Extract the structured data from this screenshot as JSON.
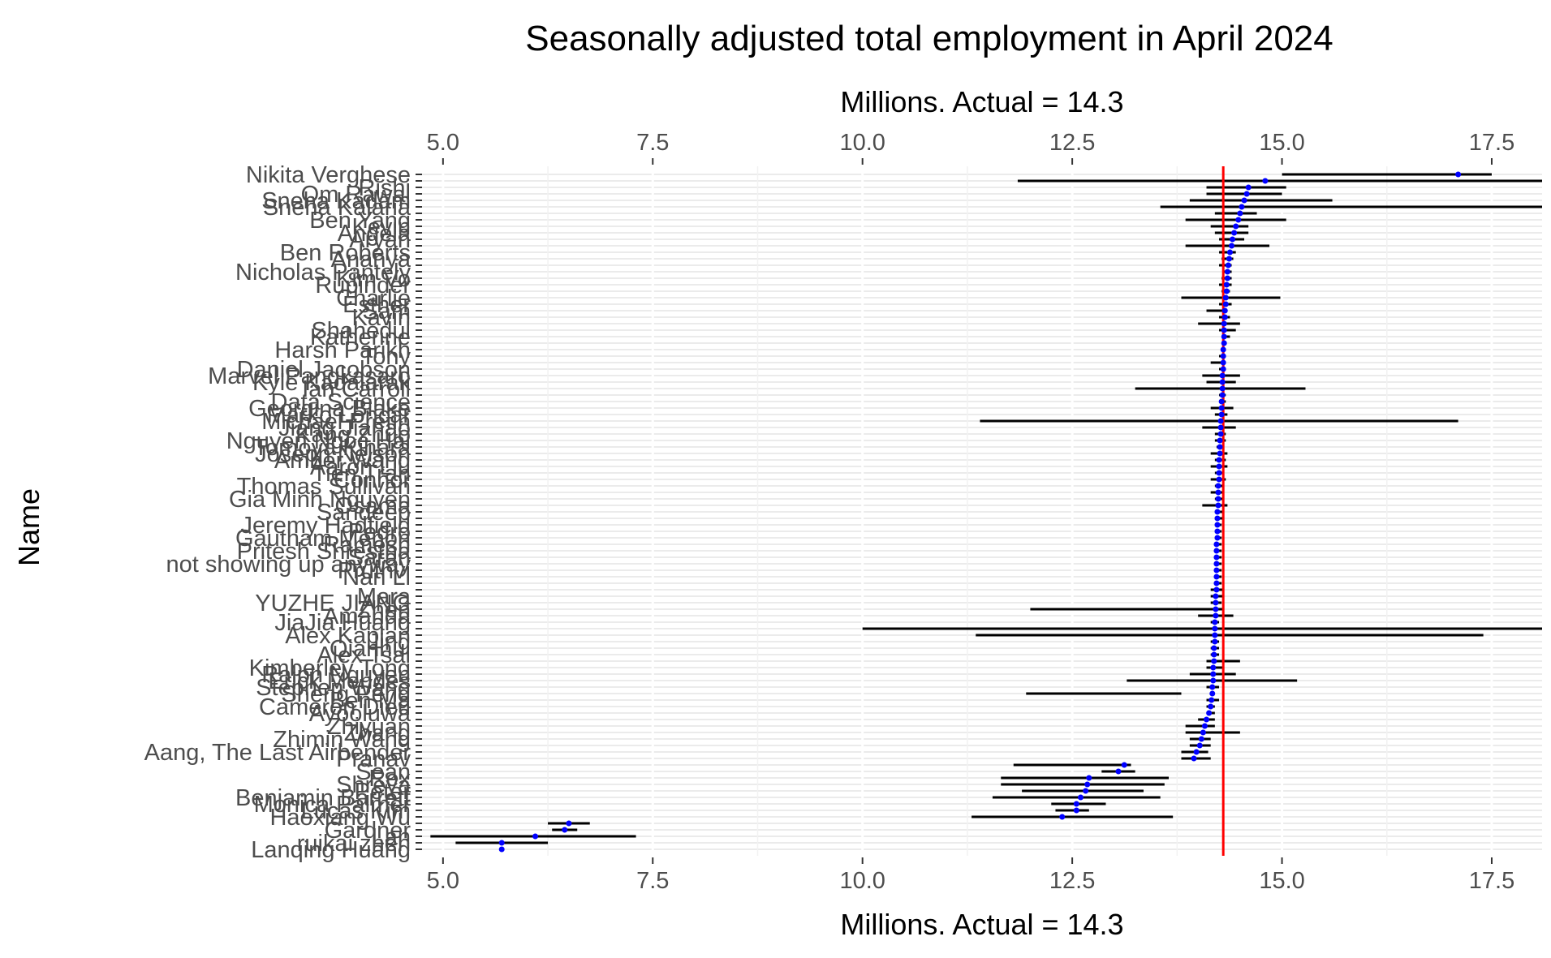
{
  "chart_data": {
    "type": "scatter",
    "title": "Seasonally adjusted total employment in April 2024",
    "xlabel_top": "Millions. Actual = 14.3",
    "xlabel": "Millions. Actual = 14.3",
    "ylabel": "Name",
    "xlim": [
      4.75,
      18.1
    ],
    "x_ticks": [
      "5.0",
      "7.5",
      "10.0",
      "12.5",
      "15.0",
      "17.5"
    ],
    "x_tick_values": [
      5.0,
      7.5,
      10.0,
      12.5,
      15.0,
      17.5
    ],
    "reference_line": {
      "x": 14.3,
      "color": "#ff0000"
    },
    "point_color": "#0000ff",
    "bar_color": "#000000",
    "grid": true,
    "rows": [
      {
        "name": "Nikita Verghese",
        "value": 17.1,
        "low": 15.0,
        "high": 17.5
      },
      {
        "name": "",
        "value": 14.8,
        "low": 11.85,
        "high": 18.1
      },
      {
        "name": "Rishi",
        "value": 14.6,
        "low": 14.1,
        "high": 15.05
      },
      {
        "name": "Om Rawal",
        "value": 14.58,
        "low": 14.1,
        "high": 15.0
      },
      {
        "name": "Sneha Kadam",
        "value": 14.55,
        "low": 13.9,
        "high": 15.6
      },
      {
        "name": "Sneha Kalaria",
        "value": 14.52,
        "low": 13.55,
        "high": 18.1
      },
      {
        "name": "",
        "value": 14.5,
        "low": 14.2,
        "high": 14.7
      },
      {
        "name": "Ben Yang",
        "value": 14.48,
        "low": 13.85,
        "high": 15.05
      },
      {
        "name": "Kevin",
        "value": 14.45,
        "low": 14.15,
        "high": 14.6
      },
      {
        "name": "Angela",
        "value": 14.43,
        "low": 14.2,
        "high": 14.6
      },
      {
        "name": "Aryan",
        "value": 14.41,
        "low": 14.25,
        "high": 14.55
      },
      {
        "name": "",
        "value": 14.4,
        "low": 13.85,
        "high": 14.85
      },
      {
        "name": "Ben Roberts",
        "value": 14.38,
        "low": 14.25,
        "high": 14.45
      },
      {
        "name": "Ananya",
        "value": 14.37,
        "low": 14.28,
        "high": 14.42
      },
      {
        "name": "",
        "value": 14.36,
        "low": 14.25,
        "high": 14.4
      },
      {
        "name": "Nicholas Pantely",
        "value": 14.35,
        "low": 14.3,
        "high": 14.4
      },
      {
        "name": "Kim Vo",
        "value": 14.35,
        "low": 14.28,
        "high": 14.4
      },
      {
        "name": "Rupinder",
        "value": 14.34,
        "low": 14.25,
        "high": 14.4
      },
      {
        "name": "",
        "value": 14.34,
        "low": 14.28,
        "high": 14.38
      },
      {
        "name": "Charlie",
        "value": 14.33,
        "low": 13.8,
        "high": 14.98
      },
      {
        "name": "Esther",
        "value": 14.33,
        "low": 14.25,
        "high": 14.4
      },
      {
        "name": "Sam",
        "value": 14.32,
        "low": 14.1,
        "high": 14.35
      },
      {
        "name": "Kavin",
        "value": 14.32,
        "low": 14.25,
        "high": 14.38
      },
      {
        "name": "",
        "value": 14.31,
        "low": 14.0,
        "high": 14.5
      },
      {
        "name": "Shahedul",
        "value": 14.31,
        "low": 14.25,
        "high": 14.45
      },
      {
        "name": "Katherine",
        "value": 14.31,
        "low": 14.28,
        "high": 14.38
      },
      {
        "name": "",
        "value": 14.31,
        "low": 14.28,
        "high": 14.33
      },
      {
        "name": "Harsh Parikh",
        "value": 14.3,
        "low": 14.28,
        "high": 14.33
      },
      {
        "name": "Tony",
        "value": 14.3,
        "low": 14.25,
        "high": 14.33
      },
      {
        "name": "",
        "value": 14.3,
        "low": 14.15,
        "high": 14.33
      },
      {
        "name": "Daniel Jacobson",
        "value": 14.3,
        "low": 14.25,
        "high": 14.33
      },
      {
        "name": "Marvel Pangkasaro",
        "value": 14.29,
        "low": 14.05,
        "high": 14.5
      },
      {
        "name": "Kyle Kadalarak",
        "value": 14.29,
        "low": 14.1,
        "high": 14.45
      },
      {
        "name": "Ian Carroll",
        "value": 14.29,
        "low": 13.25,
        "high": 15.28
      },
      {
        "name": "",
        "value": 14.29,
        "low": 14.25,
        "high": 14.33
      },
      {
        "name": "Data Science",
        "value": 14.28,
        "low": 14.25,
        "high": 14.33
      },
      {
        "name": "Georgina Blake",
        "value": 14.28,
        "low": 14.15,
        "high": 14.42
      },
      {
        "name": "Marko Loncar",
        "value": 14.28,
        "low": 14.2,
        "high": 14.35
      },
      {
        "name": "Michael Pretin",
        "value": 14.27,
        "low": 11.4,
        "high": 17.1
      },
      {
        "name": "Jiang Jiahao",
        "value": 14.27,
        "low": 14.05,
        "high": 14.45
      },
      {
        "name": "Kang Zhuo",
        "value": 14.27,
        "low": 14.2,
        "high": 14.33
      },
      {
        "name": "Nguyen Ngoc Hai",
        "value": 14.26,
        "low": 14.2,
        "high": 14.33
      },
      {
        "name": "Tomoya Kihara",
        "value": 14.26,
        "low": 14.22,
        "high": 14.3
      },
      {
        "name": "Joseph Nelson",
        "value": 14.26,
        "low": 14.15,
        "high": 14.35
      },
      {
        "name": "Amber Wang",
        "value": 14.25,
        "low": 14.2,
        "high": 14.33
      },
      {
        "name": "Aaron Liu",
        "value": 14.25,
        "low": 14.15,
        "high": 14.35
      },
      {
        "name": "Tien Tran",
        "value": 14.25,
        "low": 14.2,
        "high": 14.3
      },
      {
        "name": "Connor",
        "value": 14.25,
        "low": 14.15,
        "high": 14.33
      },
      {
        "name": "Thomas Sullivan",
        "value": 14.24,
        "low": 14.2,
        "high": 14.3
      },
      {
        "name": "",
        "value": 14.24,
        "low": 14.15,
        "high": 14.3
      },
      {
        "name": "Gia Minh Nguyen",
        "value": 14.24,
        "low": 14.2,
        "high": 14.3
      },
      {
        "name": "Osama",
        "value": 14.24,
        "low": 14.05,
        "high": 14.35
      },
      {
        "name": "Sandeep",
        "value": 14.23,
        "low": 14.2,
        "high": 14.3
      },
      {
        "name": "",
        "value": 14.23,
        "low": 14.2,
        "high": 14.3
      },
      {
        "name": "Jeremy Hadfield",
        "value": 14.23,
        "low": 14.2,
        "high": 14.28
      },
      {
        "name": "Pedro",
        "value": 14.23,
        "low": 14.2,
        "high": 14.28
      },
      {
        "name": "Gautham Menon",
        "value": 14.23,
        "low": 14.2,
        "high": 14.28
      },
      {
        "name": "Ramesh",
        "value": 14.22,
        "low": 14.2,
        "high": 14.28
      },
      {
        "name": "Pritesh Shrestha",
        "value": 14.22,
        "low": 14.2,
        "high": 14.28
      },
      {
        "name": "Sarah",
        "value": 14.22,
        "low": 14.2,
        "high": 14.28
      },
      {
        "name": "not showing up anyway",
        "value": 14.22,
        "low": 14.2,
        "high": 14.28
      },
      {
        "name": "Pruthvi",
        "value": 14.22,
        "low": 14.2,
        "high": 14.28
      },
      {
        "name": "Nan Li",
        "value": 14.22,
        "low": 14.2,
        "high": 14.28
      },
      {
        "name": "",
        "value": 14.22,
        "low": 14.2,
        "high": 14.28
      },
      {
        "name": "",
        "value": 14.22,
        "low": 14.15,
        "high": 14.3
      },
      {
        "name": "Mara",
        "value": 14.21,
        "low": 14.15,
        "high": 14.3
      },
      {
        "name": "YUZHE JIANG",
        "value": 14.21,
        "low": 14.15,
        "high": 14.28
      },
      {
        "name": "Zhen",
        "value": 14.21,
        "low": 12.0,
        "high": 14.3
      },
      {
        "name": "Amanda",
        "value": 14.21,
        "low": 14.0,
        "high": 14.42
      },
      {
        "name": "JiaJia Huang",
        "value": 14.2,
        "low": 14.15,
        "high": 14.25
      },
      {
        "name": "",
        "value": 14.2,
        "low": 10.0,
        "high": 18.1
      },
      {
        "name": "Alex Kaplan",
        "value": 14.2,
        "low": 11.35,
        "high": 17.4
      },
      {
        "name": "Jing",
        "value": 14.2,
        "low": 14.15,
        "high": 14.25
      },
      {
        "name": "Qianhui",
        "value": 14.19,
        "low": 14.15,
        "high": 14.25
      },
      {
        "name": "Alex Tsai",
        "value": 14.19,
        "low": 14.15,
        "high": 14.25
      },
      {
        "name": "",
        "value": 14.19,
        "low": 14.1,
        "high": 14.5
      },
      {
        "name": "Kimberley Tong",
        "value": 14.18,
        "low": 14.1,
        "high": 14.3
      },
      {
        "name": "Ralph Nguyen",
        "value": 14.18,
        "low": 13.9,
        "high": 14.45
      },
      {
        "name": "Erick Mendes",
        "value": 14.18,
        "low": 13.15,
        "high": 15.18
      },
      {
        "name": "Stephen Wang",
        "value": 14.17,
        "low": 14.1,
        "high": 14.25
      },
      {
        "name": "Sheng Peng",
        "value": 14.17,
        "low": 11.95,
        "high": 13.8
      },
      {
        "name": "Ben Ma",
        "value": 14.16,
        "low": 14.1,
        "high": 14.25
      },
      {
        "name": "Cameron Dieu",
        "value": 14.15,
        "low": 14.1,
        "high": 14.2
      },
      {
        "name": "Ayooluwa",
        "value": 14.13,
        "low": 14.1,
        "high": 14.2
      },
      {
        "name": "",
        "value": 14.1,
        "low": 14.0,
        "high": 14.2
      },
      {
        "name": "Zhiyuan",
        "value": 14.08,
        "low": 13.85,
        "high": 14.2
      },
      {
        "name": "Zhang",
        "value": 14.06,
        "low": 13.85,
        "high": 14.5
      },
      {
        "name": "Zhimin Wang",
        "value": 14.04,
        "low": 13.9,
        "high": 14.15
      },
      {
        "name": "",
        "value": 14.02,
        "low": 13.9,
        "high": 14.15
      },
      {
        "name": "Aang, The Last Airbender",
        "value": 13.98,
        "low": 13.8,
        "high": 14.12
      },
      {
        "name": "Pranav",
        "value": 13.95,
        "low": 13.8,
        "high": 14.15
      },
      {
        "name": "",
        "value": 13.12,
        "low": 11.8,
        "high": 13.2
      },
      {
        "name": "Sean",
        "value": 13.05,
        "low": 12.85,
        "high": 13.25
      },
      {
        "name": "Rex",
        "value": 12.7,
        "low": 11.65,
        "high": 13.65
      },
      {
        "name": "Shreya",
        "value": 12.68,
        "low": 11.65,
        "high": 13.6
      },
      {
        "name": "Peter",
        "value": 12.66,
        "low": 11.9,
        "high": 13.35
      },
      {
        "name": "Benjamin Barrett",
        "value": 12.6,
        "low": 11.55,
        "high": 13.55
      },
      {
        "name": "Monica Palmer",
        "value": 12.55,
        "low": 12.25,
        "high": 12.9
      },
      {
        "name": "Lucas Kim",
        "value": 12.55,
        "low": 12.3,
        "high": 12.7
      },
      {
        "name": "Haoxiang Wu",
        "value": 12.38,
        "low": 11.3,
        "high": 13.7
      },
      {
        "name": "",
        "value": 6.5,
        "low": 6.25,
        "high": 6.75
      },
      {
        "name": "Gardner",
        "value": 6.45,
        "low": 6.3,
        "high": 6.6
      },
      {
        "name": "Lan",
        "value": 6.1,
        "low": 4.85,
        "high": 7.3
      },
      {
        "name": "ruikai zhen",
        "value": 5.7,
        "low": 5.15,
        "high": 6.25
      },
      {
        "name": "Lanqing Huang",
        "value": 5.7,
        "low": 5.7,
        "high": 5.7
      }
    ]
  }
}
